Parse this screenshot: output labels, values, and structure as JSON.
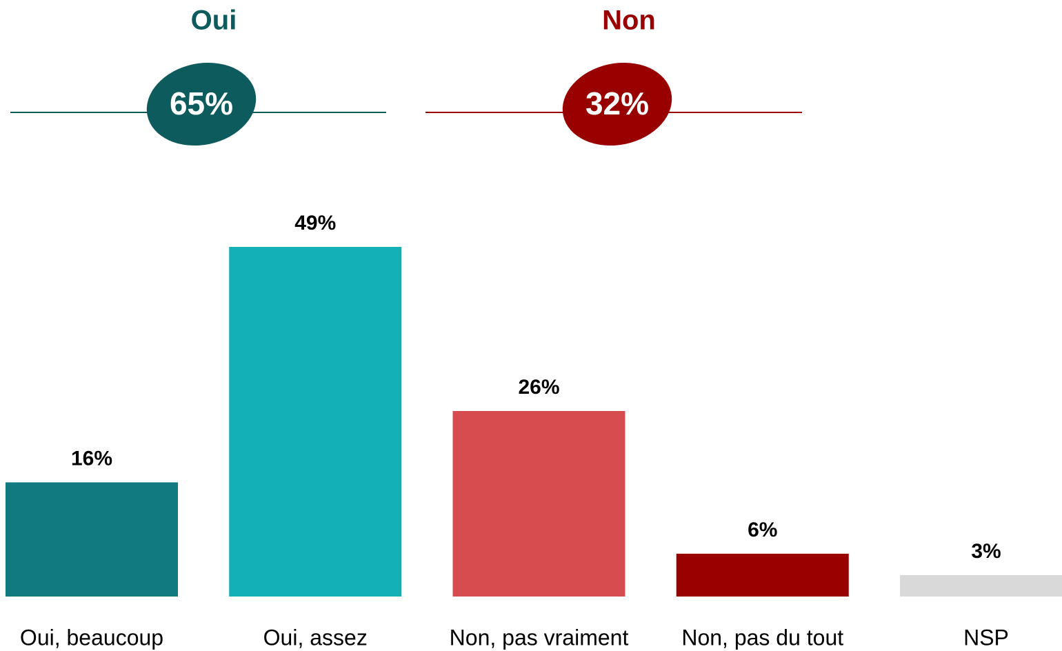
{
  "chart_data": {
    "type": "bar",
    "categories": [
      "Oui, beaucoup",
      "Oui, assez",
      "Non, pas vraiment",
      "Non, pas du tout",
      "NSP"
    ],
    "values": [
      16,
      49,
      26,
      6,
      3
    ],
    "value_labels": [
      "16%",
      "49%",
      "26%",
      "6%",
      "3%"
    ],
    "colors": [
      "#107a80",
      "#14b0b8",
      "#d64c4f",
      "#990000",
      "#d9d9d9"
    ],
    "groups": [
      {
        "name": "Oui",
        "value": 65,
        "value_label": "65%",
        "color": "#0e5b5e"
      },
      {
        "name": "Non",
        "value": 32,
        "value_label": "32%",
        "color": "#990000"
      }
    ]
  }
}
